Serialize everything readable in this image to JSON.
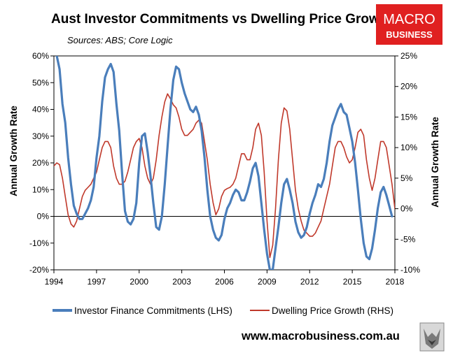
{
  "title": "Aust Investor Commitments vs Dwelling Price Growth",
  "subtitle": "Sources: ABS; Core Logic",
  "logo": {
    "line1": "MACRO",
    "line2": "BUSINESS",
    "color": "#e02020"
  },
  "footer": {
    "url": "www.macrobusiness.com.au",
    "badge_icon": "wolf-icon"
  },
  "chart_data": {
    "type": "line",
    "xlim": [
      1994,
      2018
    ],
    "x_ticks": [
      "1994",
      "1997",
      "2000",
      "2003",
      "2006",
      "2009",
      "2012",
      "2015",
      "2018"
    ],
    "ylabel": "Annual Growth Rate",
    "ylim": [
      -20,
      60
    ],
    "y_ticks": [
      "60%",
      "50%",
      "40%",
      "30%",
      "20%",
      "10%",
      "0%",
      "-10%",
      "-20%"
    ],
    "y2label": "Annual Growth Rate",
    "y2lim": [
      -10,
      25
    ],
    "y2_ticks": [
      "25%",
      "20%",
      "15%",
      "10%",
      "5%",
      "0%",
      "-5%",
      "-10%"
    ],
    "grid": false,
    "legend_position": "bottom",
    "series": [
      {
        "name": "Investor Finance Commitments (LHS)",
        "axis": "left",
        "color": "#4a7ebb",
        "points": [
          [
            1994.2,
            60
          ],
          [
            1994.4,
            55
          ],
          [
            1994.6,
            42
          ],
          [
            1994.8,
            35
          ],
          [
            1995.0,
            22
          ],
          [
            1995.2,
            12
          ],
          [
            1995.4,
            4
          ],
          [
            1995.6,
            1
          ],
          [
            1995.8,
            -1
          ],
          [
            1996.0,
            -1
          ],
          [
            1996.2,
            1
          ],
          [
            1996.4,
            3
          ],
          [
            1996.6,
            6
          ],
          [
            1996.8,
            11
          ],
          [
            1997.0,
            22
          ],
          [
            1997.2,
            30
          ],
          [
            1997.4,
            43
          ],
          [
            1997.6,
            52
          ],
          [
            1997.8,
            55
          ],
          [
            1998.0,
            57
          ],
          [
            1998.2,
            54
          ],
          [
            1998.4,
            42
          ],
          [
            1998.6,
            32
          ],
          [
            1998.8,
            16
          ],
          [
            1999.0,
            2
          ],
          [
            1999.2,
            -2
          ],
          [
            1999.4,
            -3
          ],
          [
            1999.6,
            -1
          ],
          [
            1999.8,
            5
          ],
          [
            2000.0,
            20
          ],
          [
            2000.2,
            30
          ],
          [
            2000.4,
            31
          ],
          [
            2000.6,
            24
          ],
          [
            2000.8,
            15
          ],
          [
            2001.0,
            5
          ],
          [
            2001.2,
            -4
          ],
          [
            2001.4,
            -5
          ],
          [
            2001.6,
            0
          ],
          [
            2001.8,
            12
          ],
          [
            2002.0,
            26
          ],
          [
            2002.2,
            40
          ],
          [
            2002.4,
            51
          ],
          [
            2002.6,
            56
          ],
          [
            2002.8,
            55
          ],
          [
            2003.0,
            50
          ],
          [
            2003.2,
            46
          ],
          [
            2003.4,
            43
          ],
          [
            2003.6,
            40
          ],
          [
            2003.8,
            39
          ],
          [
            2004.0,
            41
          ],
          [
            2004.2,
            38
          ],
          [
            2004.4,
            32
          ],
          [
            2004.6,
            22
          ],
          [
            2004.8,
            10
          ],
          [
            2005.0,
            0
          ],
          [
            2005.2,
            -5
          ],
          [
            2005.4,
            -8
          ],
          [
            2005.6,
            -9
          ],
          [
            2005.8,
            -7
          ],
          [
            2006.0,
            -1
          ],
          [
            2006.2,
            3
          ],
          [
            2006.4,
            5
          ],
          [
            2006.6,
            8
          ],
          [
            2006.8,
            10
          ],
          [
            2007.0,
            9
          ],
          [
            2007.2,
            6
          ],
          [
            2007.4,
            6
          ],
          [
            2007.6,
            9
          ],
          [
            2007.8,
            13
          ],
          [
            2008.0,
            18
          ],
          [
            2008.2,
            20
          ],
          [
            2008.4,
            15
          ],
          [
            2008.6,
            5
          ],
          [
            2008.8,
            -5
          ],
          [
            2009.0,
            -14
          ],
          [
            2009.2,
            -20
          ],
          [
            2009.4,
            -20
          ],
          [
            2009.6,
            -12
          ],
          [
            2009.8,
            -4
          ],
          [
            2010.0,
            5
          ],
          [
            2010.2,
            12
          ],
          [
            2010.4,
            14
          ],
          [
            2010.6,
            10
          ],
          [
            2010.8,
            5
          ],
          [
            2011.0,
            -2
          ],
          [
            2011.2,
            -6
          ],
          [
            2011.4,
            -8
          ],
          [
            2011.6,
            -7
          ],
          [
            2011.8,
            -4
          ],
          [
            2012.0,
            1
          ],
          [
            2012.2,
            5
          ],
          [
            2012.4,
            8
          ],
          [
            2012.6,
            12
          ],
          [
            2012.8,
            11
          ],
          [
            2013.0,
            14
          ],
          [
            2013.2,
            20
          ],
          [
            2013.4,
            28
          ],
          [
            2013.6,
            34
          ],
          [
            2013.8,
            37
          ],
          [
            2014.0,
            40
          ],
          [
            2014.2,
            42
          ],
          [
            2014.4,
            39
          ],
          [
            2014.6,
            38
          ],
          [
            2014.8,
            33
          ],
          [
            2015.0,
            28
          ],
          [
            2015.2,
            20
          ],
          [
            2015.4,
            10
          ],
          [
            2015.6,
            -1
          ],
          [
            2015.8,
            -10
          ],
          [
            2016.0,
            -15
          ],
          [
            2016.2,
            -16
          ],
          [
            2016.4,
            -12
          ],
          [
            2016.6,
            -5
          ],
          [
            2016.8,
            3
          ],
          [
            2017.0,
            9
          ],
          [
            2017.2,
            11
          ],
          [
            2017.4,
            8
          ],
          [
            2017.6,
            4
          ],
          [
            2017.8,
            0
          ]
        ]
      },
      {
        "name": "Dwelling Price Growth (RHS)",
        "axis": "right",
        "color": "#c0392b",
        "points": [
          [
            1994.0,
            7
          ],
          [
            1994.2,
            7.5
          ],
          [
            1994.4,
            7.2
          ],
          [
            1994.6,
            5
          ],
          [
            1994.8,
            2
          ],
          [
            1995.0,
            -1
          ],
          [
            1995.2,
            -2.5
          ],
          [
            1995.4,
            -3
          ],
          [
            1995.6,
            -2
          ],
          [
            1995.8,
            0
          ],
          [
            1996.0,
            2
          ],
          [
            1996.2,
            3
          ],
          [
            1996.4,
            3.5
          ],
          [
            1996.6,
            4
          ],
          [
            1996.8,
            5
          ],
          [
            1997.0,
            6
          ],
          [
            1997.2,
            8
          ],
          [
            1997.4,
            10
          ],
          [
            1997.6,
            11
          ],
          [
            1997.8,
            11
          ],
          [
            1998.0,
            10
          ],
          [
            1998.2,
            7
          ],
          [
            1998.4,
            5
          ],
          [
            1998.6,
            4
          ],
          [
            1998.8,
            4
          ],
          [
            1999.0,
            4.5
          ],
          [
            1999.2,
            6
          ],
          [
            1999.4,
            8
          ],
          [
            1999.6,
            10
          ],
          [
            1999.8,
            11
          ],
          [
            2000.0,
            11.5
          ],
          [
            2000.2,
            10
          ],
          [
            2000.4,
            7
          ],
          [
            2000.6,
            5
          ],
          [
            2000.8,
            4
          ],
          [
            2001.0,
            5
          ],
          [
            2001.2,
            8
          ],
          [
            2001.4,
            12
          ],
          [
            2001.6,
            15
          ],
          [
            2001.8,
            17.5
          ],
          [
            2002.0,
            18.8
          ],
          [
            2002.2,
            18
          ],
          [
            2002.4,
            17
          ],
          [
            2002.6,
            16.5
          ],
          [
            2002.8,
            15
          ],
          [
            2003.0,
            13
          ],
          [
            2003.2,
            12
          ],
          [
            2003.4,
            12
          ],
          [
            2003.6,
            12.5
          ],
          [
            2003.8,
            13
          ],
          [
            2004.0,
            14
          ],
          [
            2004.2,
            14.5
          ],
          [
            2004.4,
            14
          ],
          [
            2004.6,
            11
          ],
          [
            2004.8,
            8
          ],
          [
            2005.0,
            4
          ],
          [
            2005.2,
            1
          ],
          [
            2005.4,
            -1
          ],
          [
            2005.6,
            0
          ],
          [
            2005.8,
            2
          ],
          [
            2006.0,
            3
          ],
          [
            2006.2,
            3.3
          ],
          [
            2006.4,
            3.5
          ],
          [
            2006.6,
            4
          ],
          [
            2006.8,
            5
          ],
          [
            2007.0,
            7
          ],
          [
            2007.2,
            9
          ],
          [
            2007.4,
            9
          ],
          [
            2007.6,
            8
          ],
          [
            2007.8,
            8
          ],
          [
            2008.0,
            10
          ],
          [
            2008.2,
            13
          ],
          [
            2008.4,
            14
          ],
          [
            2008.6,
            12
          ],
          [
            2008.8,
            6
          ],
          [
            2009.0,
            -2
          ],
          [
            2009.2,
            -8
          ],
          [
            2009.4,
            -6
          ],
          [
            2009.6,
            0
          ],
          [
            2009.8,
            8
          ],
          [
            2010.0,
            14
          ],
          [
            2010.2,
            16.5
          ],
          [
            2010.4,
            16
          ],
          [
            2010.6,
            13
          ],
          [
            2010.8,
            8
          ],
          [
            2011.0,
            3
          ],
          [
            2011.2,
            0
          ],
          [
            2011.4,
            -2
          ],
          [
            2011.6,
            -3.5
          ],
          [
            2011.8,
            -4
          ],
          [
            2012.0,
            -4.5
          ],
          [
            2012.2,
            -4.5
          ],
          [
            2012.4,
            -4
          ],
          [
            2012.6,
            -3
          ],
          [
            2012.8,
            -2
          ],
          [
            2013.0,
            0
          ],
          [
            2013.2,
            2
          ],
          [
            2013.4,
            4
          ],
          [
            2013.6,
            7
          ],
          [
            2013.8,
            10
          ],
          [
            2014.0,
            11
          ],
          [
            2014.2,
            11
          ],
          [
            2014.4,
            10
          ],
          [
            2014.6,
            8.5
          ],
          [
            2014.8,
            7.5
          ],
          [
            2015.0,
            8
          ],
          [
            2015.2,
            10
          ],
          [
            2015.4,
            12.5
          ],
          [
            2015.6,
            13
          ],
          [
            2015.8,
            12
          ],
          [
            2016.0,
            8
          ],
          [
            2016.2,
            5
          ],
          [
            2016.4,
            3
          ],
          [
            2016.6,
            5
          ],
          [
            2016.8,
            8
          ],
          [
            2017.0,
            11
          ],
          [
            2017.2,
            11
          ],
          [
            2017.4,
            10
          ],
          [
            2017.6,
            7
          ],
          [
            2017.8,
            4
          ],
          [
            2018.0,
            0
          ]
        ]
      }
    ]
  }
}
